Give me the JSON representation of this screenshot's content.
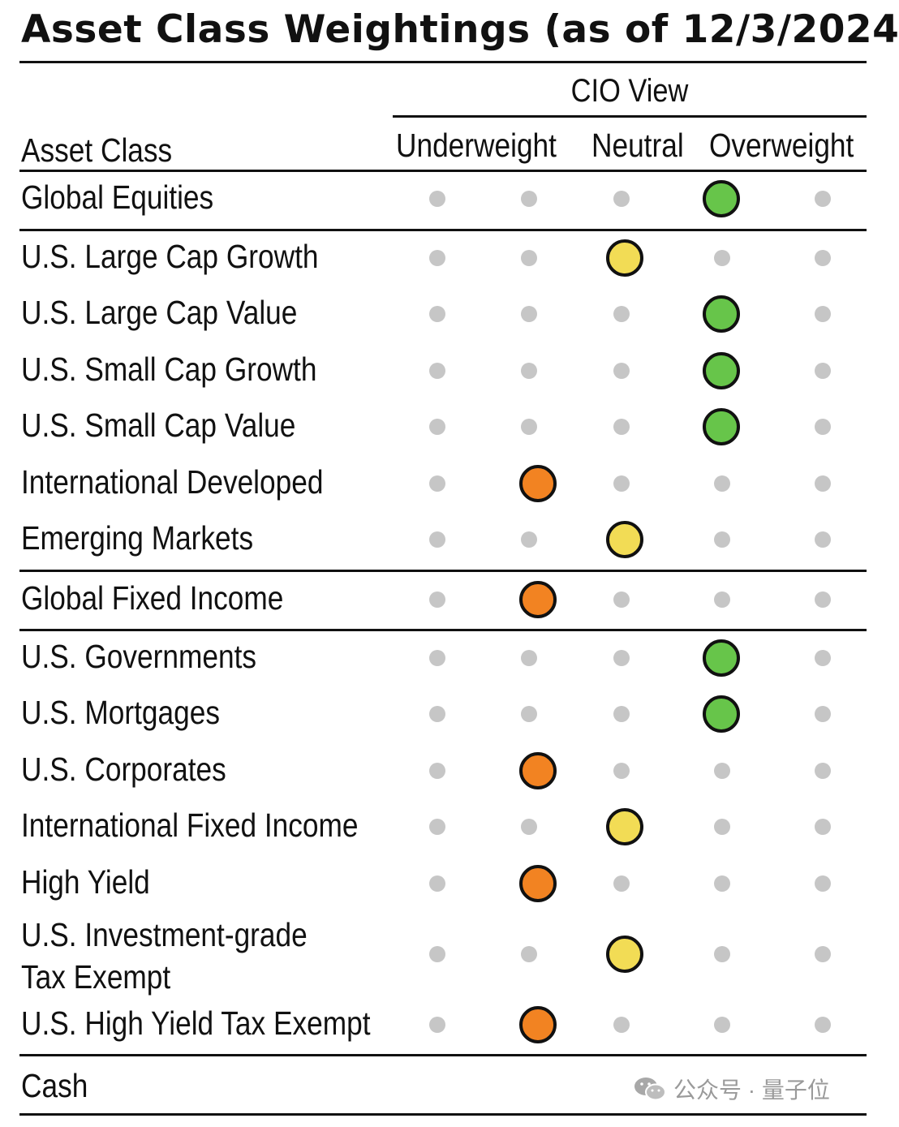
{
  "title": "Asset Class Weightings (as of 12/3/2024",
  "header": {
    "asset_class": "Asset Class",
    "cio_view": "CIO View",
    "underweight": "Underweight",
    "neutral": "Neutral",
    "overweight": "Overweight"
  },
  "colors": {
    "underweight": "#f28322",
    "neutral": "#f2dc55",
    "overweight": "#67c54a",
    "inactive": "#c6c6c6"
  },
  "rows": [
    {
      "label": "Global Equities",
      "rating": 4,
      "color": "overweight"
    },
    {
      "label": "U.S. Large Cap Growth",
      "rating": 3,
      "color": "neutral"
    },
    {
      "label": "U.S. Large Cap Value",
      "rating": 4,
      "color": "overweight"
    },
    {
      "label": "U.S. Small Cap Growth",
      "rating": 4,
      "color": "overweight"
    },
    {
      "label": "U.S. Small Cap Value",
      "rating": 4,
      "color": "overweight"
    },
    {
      "label": "International Developed",
      "rating": 2,
      "color": "underweight"
    },
    {
      "label": "Emerging Markets",
      "rating": 3,
      "color": "neutral"
    },
    {
      "label": "Global Fixed Income",
      "rating": 2,
      "color": "underweight"
    },
    {
      "label": "U.S. Governments",
      "rating": 4,
      "color": "overweight"
    },
    {
      "label": "U.S. Mortgages",
      "rating": 4,
      "color": "overweight"
    },
    {
      "label": "U.S. Corporates",
      "rating": 2,
      "color": "underweight"
    },
    {
      "label": "International Fixed Income",
      "rating": 3,
      "color": "neutral"
    },
    {
      "label": "High Yield",
      "rating": 2,
      "color": "underweight"
    },
    {
      "label": "U.S. Investment-grade Tax Exempt",
      "line1": "U.S. Investment-grade",
      "line2": "Tax Exempt",
      "rating": 3,
      "color": "neutral"
    },
    {
      "label": "U.S. High Yield Tax Exempt",
      "rating": 2,
      "color": "underweight"
    },
    {
      "label": "Cash",
      "rating": null,
      "color": null
    }
  ],
  "watermark": {
    "icon": "wechat-icon",
    "text": "公众号 · 量子位"
  }
}
